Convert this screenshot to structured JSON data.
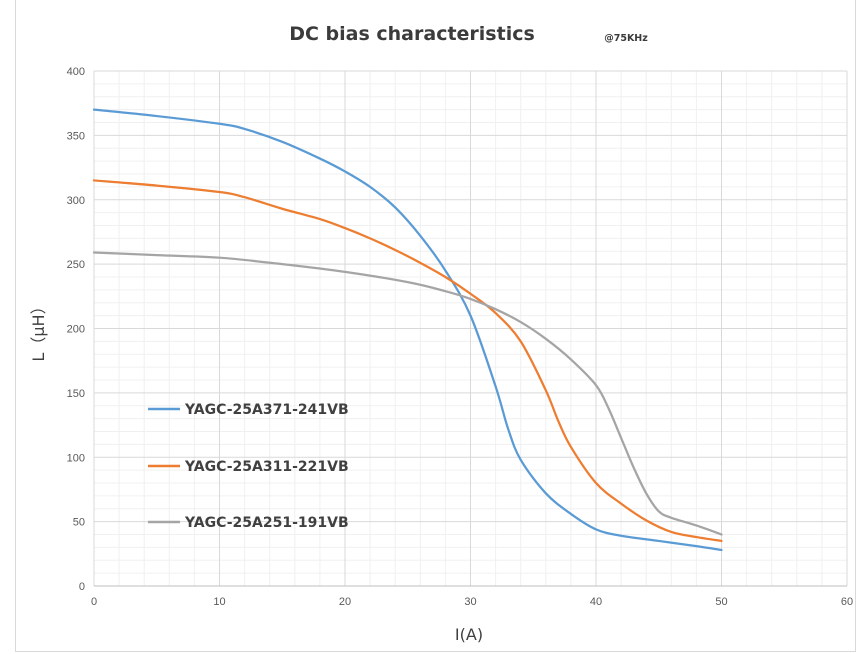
{
  "chart_data": {
    "type": "line",
    "title": "DC bias characteristics",
    "subtitle": "@75KHz",
    "xlabel": "I(A)",
    "ylabel": "L（μH）",
    "xlim": [
      0,
      60
    ],
    "ylim": [
      0,
      400
    ],
    "x_ticks": [
      "0",
      "10",
      "20",
      "30",
      "40",
      "50",
      "60"
    ],
    "y_ticks": [
      "0",
      "50",
      "100",
      "150",
      "200",
      "250",
      "300",
      "350",
      "400"
    ],
    "grid": true,
    "legend_position": "left",
    "series": [
      {
        "name": "YAGC-25A371-241VB",
        "color": "#5b9bd5",
        "x": [
          0,
          5,
          10,
          12,
          15,
          18,
          20,
          22,
          24,
          26,
          28,
          30,
          32,
          33,
          34,
          36,
          38,
          40,
          42,
          45,
          48,
          50
        ],
        "y": [
          370,
          365,
          359,
          355,
          345,
          332,
          322,
          310,
          294,
          272,
          245,
          210,
          155,
          122,
          98,
          72,
          56,
          44,
          39,
          35,
          31,
          28
        ]
      },
      {
        "name": "YAGC-25A311-221VB",
        "color": "#ed7d31",
        "x": [
          0,
          5,
          10,
          12,
          15,
          18,
          20,
          22,
          24,
          26,
          28,
          30,
          32,
          34,
          36,
          37,
          38,
          40,
          42,
          44,
          46,
          48,
          50
        ],
        "y": [
          315,
          311,
          306,
          302,
          293,
          285,
          278,
          270,
          261,
          251,
          240,
          227,
          212,
          190,
          152,
          128,
          108,
          80,
          64,
          51,
          42,
          38,
          35
        ]
      },
      {
        "name": "YAGC-25A251-191VB",
        "color": "#a5a5a5",
        "x": [
          0,
          5,
          10,
          15,
          20,
          25,
          28,
          30,
          32,
          34,
          36,
          38,
          40,
          41,
          42,
          43,
          44,
          45,
          46,
          48,
          50
        ],
        "y": [
          259,
          257,
          255,
          250,
          244,
          236,
          229,
          223,
          215,
          205,
          192,
          176,
          156,
          138,
          115,
          92,
          72,
          58,
          53,
          47,
          40
        ]
      }
    ]
  }
}
